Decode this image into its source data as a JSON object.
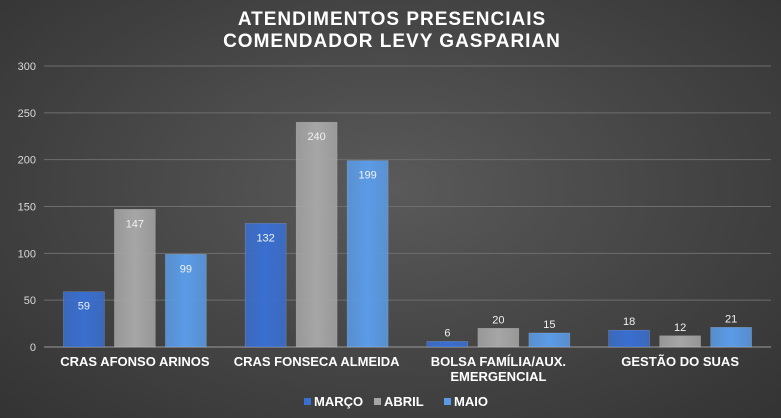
{
  "chart_data": {
    "type": "bar",
    "title_lines": [
      "ATENDIMENTOS PRESENCIAIS",
      "COMENDADOR LEVY GASPARIAN"
    ],
    "categories": [
      [
        "CRAS AFONSO ARINOS"
      ],
      [
        "CRAS FONSECA ALMEIDA"
      ],
      [
        "BOLSA FAMÍLIA/AUX.",
        "EMERGENCIAL"
      ],
      [
        "GESTÃO DO SUAS"
      ]
    ],
    "series": [
      {
        "name": "MARÇO",
        "color": "#3a6fd0",
        "values": [
          59,
          132,
          6,
          18
        ]
      },
      {
        "name": "ABRIL",
        "color": "#a6a6a6",
        "values": [
          147,
          240,
          20,
          12
        ]
      },
      {
        "name": "MAIO",
        "color": "#5b9be6",
        "values": [
          99,
          199,
          15,
          21
        ]
      }
    ],
    "ylim": [
      0,
      300
    ],
    "yticks": [
      0,
      50,
      100,
      150,
      200,
      250,
      300
    ],
    "grid": true,
    "legend_position": "bottom"
  }
}
